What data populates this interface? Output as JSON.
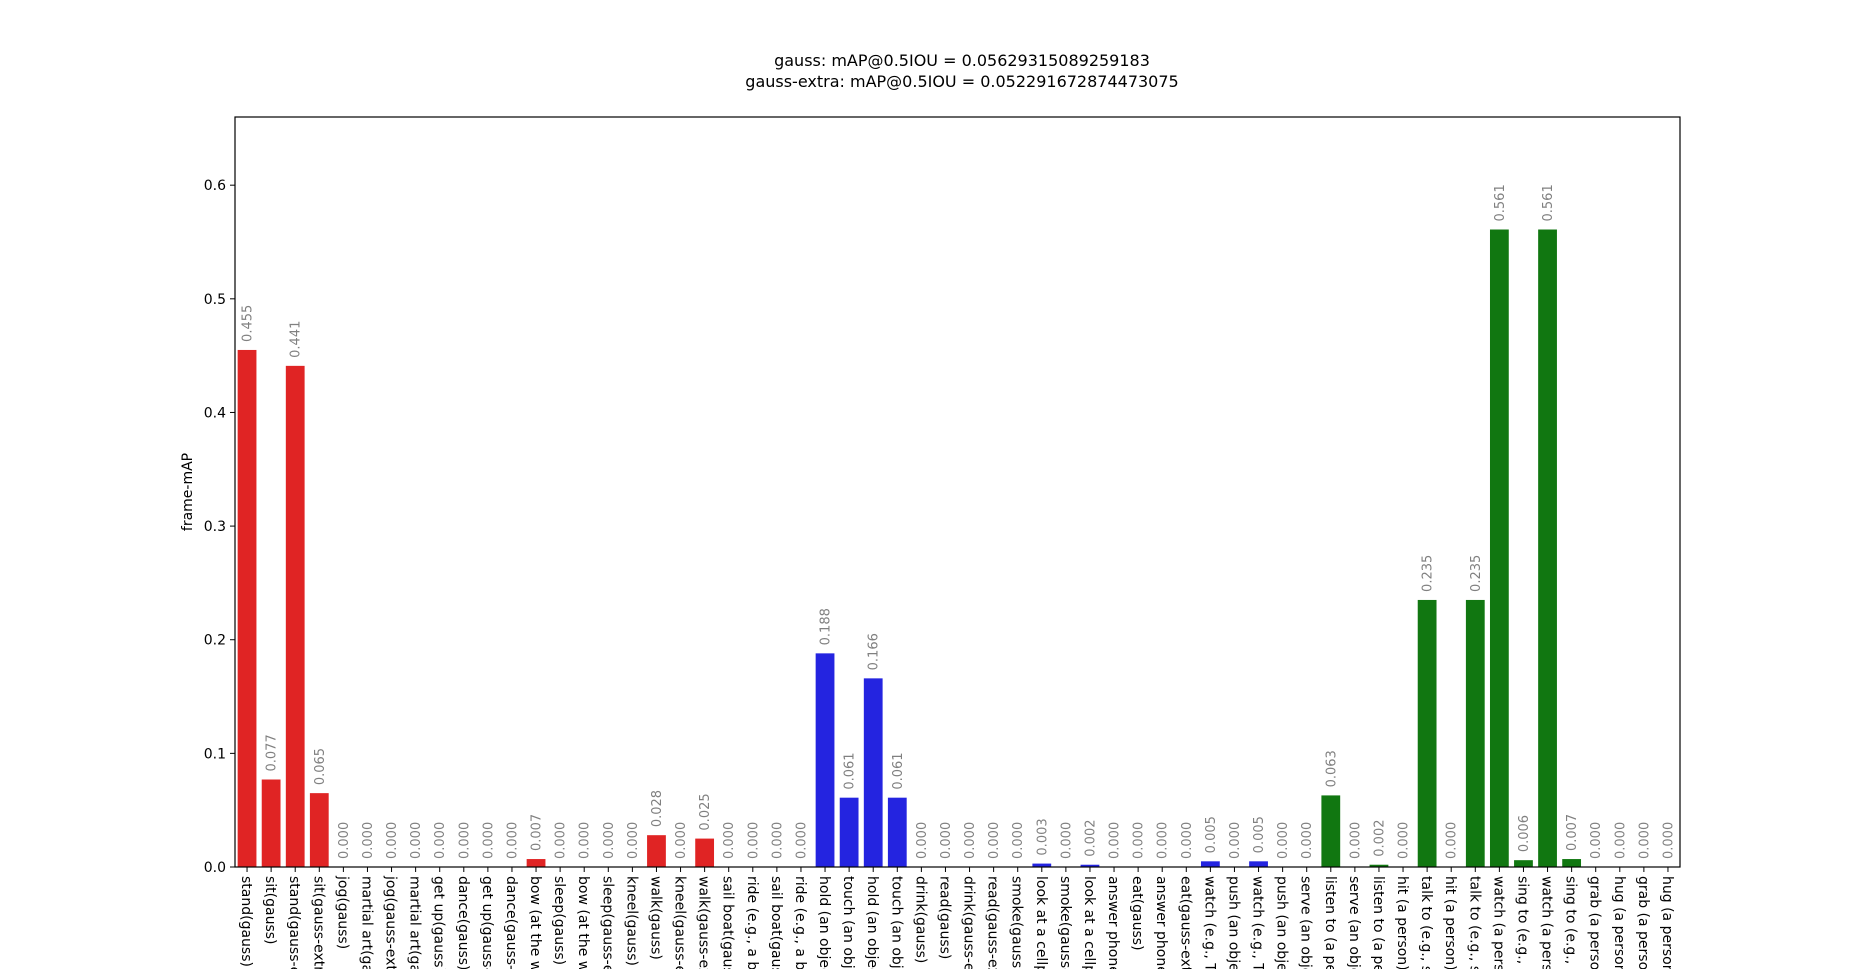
{
  "chart_data": {
    "type": "bar",
    "title_lines": [
      "gauss: mAP@0.5IOU = 0.05629315089259183",
      "gauss-extra: mAP@0.5IOU = 0.052291672874473075"
    ],
    "xlabel": "",
    "ylabel": "frame-mAP",
    "ylim": [
      0,
      0.66
    ],
    "yticks": [
      0.0,
      0.1,
      0.2,
      0.3,
      0.4,
      0.5,
      0.6
    ],
    "ytick_labels": [
      "0.0",
      "0.1",
      "0.2",
      "0.3",
      "0.4",
      "0.5",
      "0.6"
    ],
    "grid": false,
    "colors": {
      "red": "#e02424",
      "blue": "#2424e0",
      "green": "#117711",
      "value_label": "#808080"
    },
    "categories": [
      "stand(gauss)",
      "sit(gauss)",
      "stand(gauss-e",
      "sit(gauss-extr",
      "jog(gauss)",
      "martial art(ga",
      "jog(gauss-ext",
      "martial art(ga",
      "get up(gauss)",
      "dance(gauss)",
      "get up(gauss-",
      "dance(gauss-e",
      "bow (at the w",
      "sleep(gauss)",
      "bow (at the w",
      "sleep(gauss-e",
      "kneel(gauss)",
      "walk(gauss)",
      "kneel(gauss-e",
      "walk(gauss-ex",
      "sail boat(gaus",
      "ride (e.g., a bi",
      "sail boat(gaus",
      "ride (e.g., a bi",
      "hold (an objec",
      "touch (an obje",
      "hold (an objec",
      "touch (an obje",
      "drink(gauss)",
      "read(gauss)",
      "drink(gauss-e",
      "read(gauss-ex",
      "smoke(gauss)",
      "look at a cellp",
      "smoke(gauss-",
      "look at a cellp",
      "answer phone",
      "eat(gauss)",
      "answer phone",
      "eat(gauss-ext",
      "watch (e.g., T",
      "push (an obje",
      "watch (e.g., T",
      "push (an obje",
      "serve (an obje",
      "listen to (a pe",
      "serve (an obje",
      "listen to (a pe",
      "hit (a person)",
      "talk to (e.g., s",
      "hit (a person)",
      "talk to (e.g., s",
      "watch (a pers",
      "sing to (e.g., s",
      "watch (a pers",
      "sing to (e.g., s",
      "grab (a perso",
      "hug (a person",
      "grab (a perso",
      "hug (a person"
    ],
    "values": [
      0.455,
      0.077,
      0.441,
      0.065,
      0.0,
      0.0,
      0.0,
      0.0,
      0.0,
      0.0,
      0.0,
      0.0,
      0.007,
      0.0,
      0.0,
      0.0,
      0.0,
      0.028,
      0.0,
      0.025,
      0.0,
      0.0,
      0.0,
      0.0,
      0.188,
      0.061,
      0.166,
      0.061,
      0.0,
      0.0,
      0.0,
      0.0,
      0.0,
      0.003,
      0.0,
      0.002,
      0.0,
      0.0,
      0.0,
      0.0,
      0.005,
      0.0,
      0.005,
      0.0,
      0.0,
      0.063,
      0.0,
      0.002,
      0.0,
      0.235,
      0.0,
      0.235,
      0.561,
      0.006,
      0.561,
      0.007,
      0.0,
      0.0,
      0.0,
      0.0
    ],
    "bar_colors": [
      "red",
      "red",
      "red",
      "red",
      "red",
      "red",
      "red",
      "red",
      "red",
      "red",
      "red",
      "red",
      "red",
      "red",
      "red",
      "red",
      "red",
      "red",
      "red",
      "red",
      "red",
      "red",
      "red",
      "red",
      "blue",
      "blue",
      "blue",
      "blue",
      "blue",
      "blue",
      "blue",
      "blue",
      "blue",
      "blue",
      "blue",
      "blue",
      "blue",
      "blue",
      "blue",
      "blue",
      "blue",
      "blue",
      "blue",
      "blue",
      "green",
      "green",
      "green",
      "green",
      "green",
      "green",
      "green",
      "green",
      "green",
      "green",
      "green",
      "green",
      "green",
      "green",
      "green",
      "green"
    ],
    "value_labels": [
      "0.455",
      "0.077",
      "0.441",
      "0.065",
      "0.000",
      "0.000",
      "0.000",
      "0.000",
      "0.000",
      "0.000",
      "0.000",
      "0.000",
      "0.007",
      "0.000",
      "0.000",
      "0.000",
      "0.000",
      "0.028",
      "0.000",
      "0.025",
      "0.000",
      "0.000",
      "0.000",
      "0.000",
      "0.188",
      "0.061",
      "0.166",
      "0.061",
      "0.000",
      "0.000",
      "0.000",
      "0.000",
      "0.000",
      "0.003",
      "0.000",
      "0.002",
      "0.000",
      "0.000",
      "0.000",
      "0.000",
      "0.005",
      "0.000",
      "0.005",
      "0.000",
      "0.000",
      "0.063",
      "0.000",
      "0.002",
      "0.000",
      "0.235",
      "0.000",
      "0.235",
      "0.561",
      "0.006",
      "0.561",
      "0.007",
      "0.000",
      "0.000",
      "0.000",
      "0.000"
    ]
  }
}
